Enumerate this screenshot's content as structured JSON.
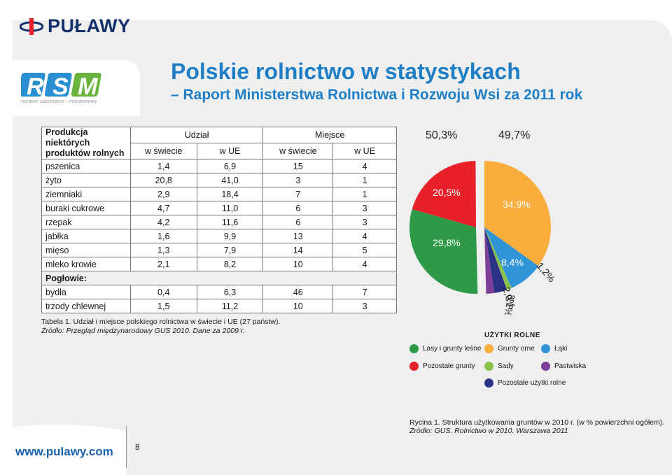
{
  "header": {
    "brand": "PUŁAWY",
    "rsm_letters": [
      "R",
      "S",
      "M"
    ],
    "rsm_tagline": "roztwór saletrzano - mocznikowy",
    "title": "Polskie rolnictwo w statystykach",
    "subtitle": "– Raport Ministerstwa Rolnictwa i Rozwoju Wsi za 2011 rok"
  },
  "table": {
    "col_product": "Produkcja niektórych produktów rolnych",
    "group_share": "Udział",
    "group_rank": "Miejsce",
    "sub_world": "w świecie",
    "sub_eu": "w UE",
    "rows": [
      {
        "name": "pszenica",
        "s_world": "1,4",
        "s_eu": "6,9",
        "r_world": "15",
        "r_eu": "4"
      },
      {
        "name": "żyto",
        "s_world": "20,8",
        "s_eu": "41,0",
        "r_world": "3",
        "r_eu": "1"
      },
      {
        "name": "ziemniaki",
        "s_world": "2,9",
        "s_eu": "18,4",
        "r_world": "7",
        "r_eu": "1"
      },
      {
        "name": "buraki cukrowe",
        "s_world": "4,7",
        "s_eu": "11,0",
        "r_world": "6",
        "r_eu": "3"
      },
      {
        "name": "rzepak",
        "s_world": "4,2",
        "s_eu": "11,6",
        "r_world": "6",
        "r_eu": "3"
      },
      {
        "name": "jabłka",
        "s_world": "1,6",
        "s_eu": "9,9",
        "r_world": "13",
        "r_eu": "4"
      },
      {
        "name": "mięso",
        "s_world": "1,3",
        "s_eu": "7,9",
        "r_world": "14",
        "r_eu": "5"
      },
      {
        "name": "mleko krowie",
        "s_world": "2,1",
        "s_eu": "8,2",
        "r_world": "10",
        "r_eu": "4"
      }
    ],
    "livestock_label": "Pogłowie:",
    "livestock_rows": [
      {
        "name": "bydła",
        "s_world": "0,4",
        "s_eu": "6,3",
        "r_world": "46",
        "r_eu": "7"
      },
      {
        "name": "trzody chlewnej",
        "s_world": "1,5",
        "s_eu": "11,2",
        "r_world": "10",
        "r_eu": "3"
      }
    ],
    "caption": "Tabela 1. Udział i miejsce polskiego rolnictwa w świecie i UE (27 państw).",
    "source": "Źródło: Przegląd międzynarodowy GUS 2010. Dane za 2009 r."
  },
  "chart_data": {
    "type": "pie",
    "groups": [
      {
        "label": "50,3%",
        "value": 50.3
      },
      {
        "label": "49,7%",
        "value": 49.7
      }
    ],
    "slices": [
      {
        "name": "Pozostałe grunty",
        "value": 20.5,
        "label": "20,5%",
        "color": "#e8202a"
      },
      {
        "name": "Lasy i grunty leśne",
        "value": 29.8,
        "label": "29,8%",
        "color": "#2e9a48"
      },
      {
        "name": "Grunty orne",
        "value": 34.9,
        "label": "34,9%",
        "color": "#f8ad3c"
      },
      {
        "name": "Łąki",
        "value": 8.4,
        "label": "8,4%",
        "color": "#2f95d6"
      },
      {
        "name": "Sady",
        "value": 1.2,
        "label": "1,2%",
        "color": "#8cc24a"
      },
      {
        "name": "Pastwiska",
        "value": 2.0,
        "label": "2,0%",
        "color": "#7d3f98"
      },
      {
        "name": "Pozostałe użytki rolne",
        "value": 3.1,
        "label": "3,1%",
        "color": "#2b3286"
      }
    ],
    "legend_title": "UŻYTKI ROLNE",
    "caption": "Rycina 1. Struktura użytkowania gruntów w 2010 r. (w % powierzchni ogółem).",
    "source": "Źródło: GUS. Rolnictwo w 2010. Warszawa 2011"
  },
  "footer": {
    "website": "www.pulawy.com",
    "page_number": "8"
  }
}
